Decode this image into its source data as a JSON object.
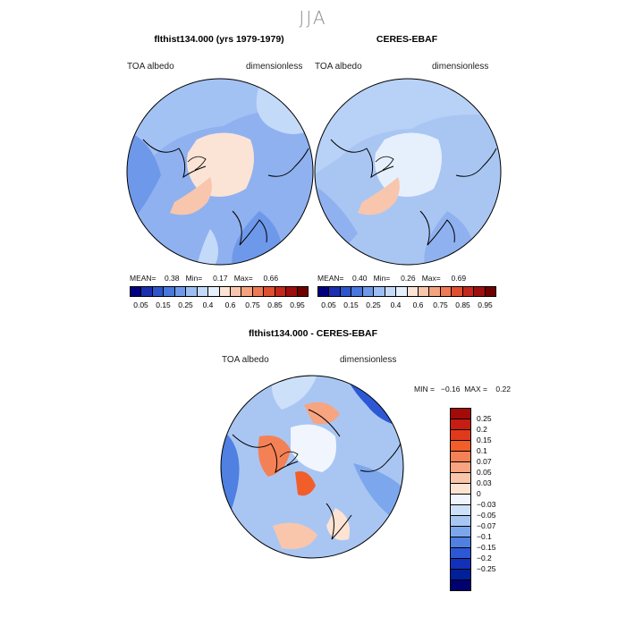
{
  "season": "JJA",
  "panels": [
    {
      "title": "flthist134.000 (yrs 1979-1979)",
      "variable": "TOA  albedo",
      "units": "dimensionless",
      "stats": "MEAN=    0.38   Min=     0.17   Max=     0.66"
    },
    {
      "title": "CERES-EBAF",
      "variable": "TOA  albedo",
      "units": "dimensionless",
      "stats": "MEAN=    0.40   Min=     0.26   Max=     0.69"
    }
  ],
  "abs_colorbar": {
    "colors": [
      "#00007f",
      "#1b2fb0",
      "#2e55cc",
      "#4878dd",
      "#6e98e9",
      "#9dbef3",
      "#c4daf9",
      "#e6f0fd",
      "#fbe3d6",
      "#f8c6ad",
      "#f5a27f",
      "#ee7a54",
      "#e04f30",
      "#c4281a",
      "#9f0e0e",
      "#700000"
    ],
    "ticks": [
      "0.05",
      "0.15",
      "0.25",
      "0.4",
      "0.6",
      "0.75",
      "0.85",
      "0.95"
    ]
  },
  "diff": {
    "title": "flthist134.000 - CERES-EBAF",
    "variable": "TOA  albedo",
    "units": "dimensionless",
    "minmax": "MIN =   −0.16  MAX =    0.22",
    "colors": [
      "#a30a0a",
      "#c71c13",
      "#e03a1b",
      "#f25e2a",
      "#f48155",
      "#f7a480",
      "#fac6ab",
      "#fde3d2",
      "#f1f6fe",
      "#cde0f9",
      "#a9c6f3",
      "#7da7ec",
      "#4f80e2",
      "#2d58d5",
      "#1331b8",
      "#001f98",
      "#000070"
    ],
    "ticks": [
      "0.25",
      "0.2",
      "0.15",
      "0.1",
      "0.07",
      "0.05",
      "0.03",
      "0",
      "−0.03",
      "−0.05",
      "−0.07",
      "−0.1",
      "−0.15",
      "−0.2",
      "−0.25"
    ]
  }
}
